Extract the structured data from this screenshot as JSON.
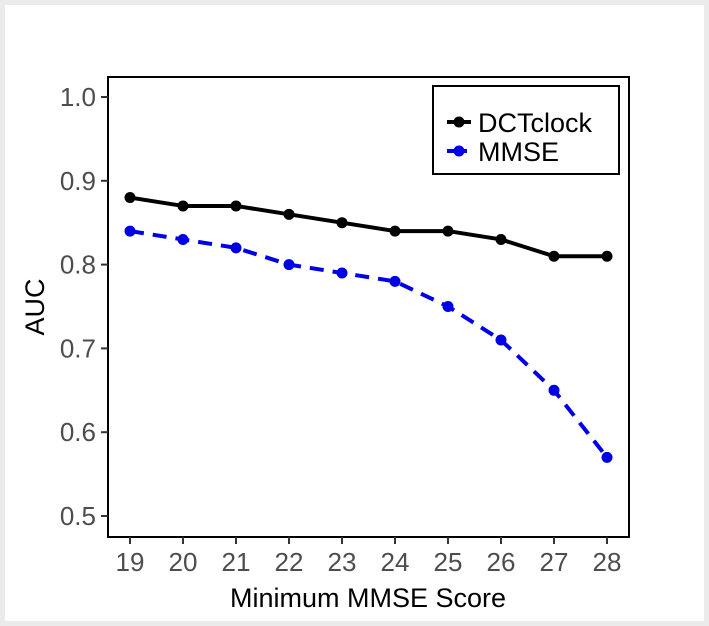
{
  "chart_data": {
    "type": "line",
    "xlabel": "Minimum MMSE Score",
    "ylabel": "AUC",
    "x": [
      19,
      20,
      21,
      22,
      23,
      24,
      25,
      26,
      27,
      28
    ],
    "xlim": [
      19,
      28
    ],
    "ylim": [
      0.5,
      1.0
    ],
    "yticks": [
      "0.5",
      "0.6",
      "0.7",
      "0.8",
      "0.9",
      "1.0"
    ],
    "xticks": [
      "19",
      "20",
      "21",
      "22",
      "23",
      "24",
      "25",
      "26",
      "27",
      "28"
    ],
    "grid": false,
    "legend_position": "top-right",
    "series": [
      {
        "name": "DCTclock",
        "color": "#000000",
        "line_style": "solid",
        "values": [
          0.88,
          0.87,
          0.87,
          0.86,
          0.85,
          0.84,
          0.84,
          0.83,
          0.81,
          0.81
        ]
      },
      {
        "name": "MMSE",
        "color": "#0000e6",
        "line_style": "dashed",
        "values": [
          0.84,
          0.83,
          0.82,
          0.8,
          0.79,
          0.78,
          0.75,
          0.71,
          0.65,
          0.57
        ]
      }
    ]
  }
}
